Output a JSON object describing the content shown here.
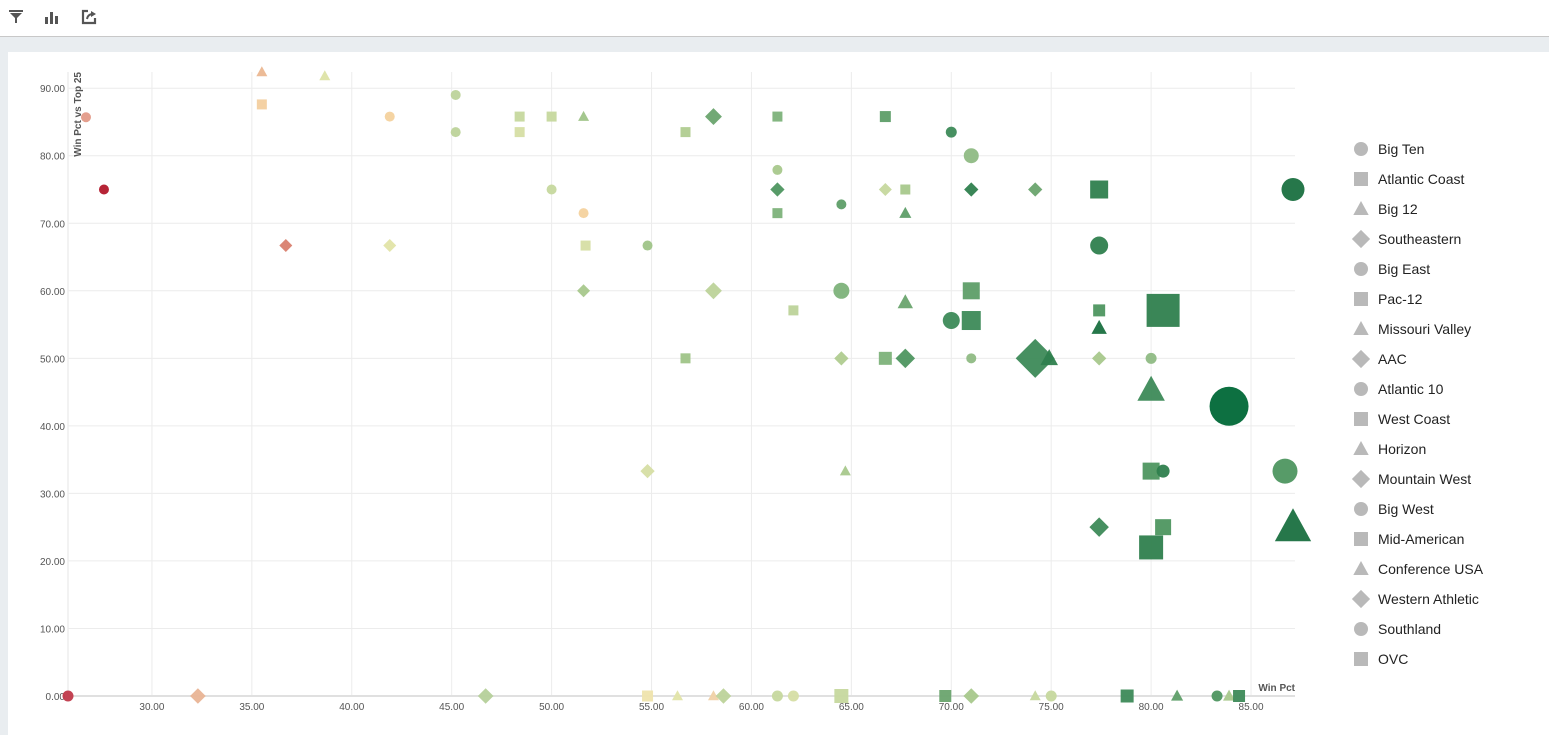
{
  "toolbar": {
    "icons": [
      "filter-icon",
      "bar-chart-icon",
      "export-icon"
    ]
  },
  "chart_data": {
    "type": "scatter",
    "xlabel": "Win Pct",
    "ylabel": "Win Pct vs Top 25",
    "xlim": [
      25.8,
      87.2
    ],
    "ylim": [
      0,
      92.4
    ],
    "xticks": [
      "30.00",
      "35.00",
      "40.00",
      "45.00",
      "50.00",
      "55.00",
      "60.00",
      "65.00",
      "70.00",
      "75.00",
      "80.00",
      "85.00"
    ],
    "yticks": [
      "0.00",
      "10.00",
      "20.00",
      "30.00",
      "40.00",
      "50.00",
      "60.00",
      "70.00",
      "80.00",
      "90.00"
    ],
    "grid": true,
    "legend_position": "right",
    "legend": [
      {
        "label": "Big Ten",
        "shape": "circle"
      },
      {
        "label": "Atlantic Coast",
        "shape": "square"
      },
      {
        "label": "Big 12",
        "shape": "triangle"
      },
      {
        "label": "Southeastern",
        "shape": "diamond"
      },
      {
        "label": "Big East",
        "shape": "circle"
      },
      {
        "label": "Pac-12",
        "shape": "square"
      },
      {
        "label": "Missouri Valley",
        "shape": "triangle"
      },
      {
        "label": "AAC",
        "shape": "diamond"
      },
      {
        "label": "Atlantic 10",
        "shape": "circle"
      },
      {
        "label": "West Coast",
        "shape": "square"
      },
      {
        "label": "Horizon",
        "shape": "triangle"
      },
      {
        "label": "Mountain West",
        "shape": "diamond"
      },
      {
        "label": "Big West",
        "shape": "circle"
      },
      {
        "label": "Mid-American",
        "shape": "square"
      },
      {
        "label": "Conference USA",
        "shape": "triangle"
      },
      {
        "label": "Western Athletic",
        "shape": "diamond"
      },
      {
        "label": "Southland",
        "shape": "circle"
      },
      {
        "label": "OVC",
        "shape": "square"
      }
    ],
    "legend_color": "#b5b5b5",
    "points": [
      {
        "x": 26.7,
        "y": 85.7,
        "shape": "circle",
        "size": 1,
        "color": "#e39a88"
      },
      {
        "x": 27.6,
        "y": 75,
        "shape": "circle",
        "size": 1,
        "color": "#b2182b"
      },
      {
        "x": 35.5,
        "y": 92.4,
        "shape": "triangle",
        "size": 1,
        "color": "#ebb791"
      },
      {
        "x": 35.5,
        "y": 87.6,
        "shape": "square",
        "size": 1,
        "color": "#f3cf9f"
      },
      {
        "x": 38.65,
        "y": 91.8,
        "shape": "triangle",
        "size": 1,
        "color": "#dde3a6"
      },
      {
        "x": 36.7,
        "y": 66.7,
        "shape": "diamond",
        "size": 1,
        "color": "#d9806e"
      },
      {
        "x": 41.9,
        "y": 85.8,
        "shape": "circle",
        "size": 1,
        "color": "#f4d29e"
      },
      {
        "x": 41.9,
        "y": 66.7,
        "shape": "diamond",
        "size": 1,
        "color": "#e2e4a8"
      },
      {
        "x": 45.2,
        "y": 89,
        "shape": "circle",
        "size": 1,
        "color": "#bdd39a"
      },
      {
        "x": 45.2,
        "y": 83.5,
        "shape": "circle",
        "size": 1,
        "color": "#bdd39a"
      },
      {
        "x": 48.4,
        "y": 85.8,
        "shape": "square",
        "size": 1,
        "color": "#c6d89e"
      },
      {
        "x": 48.4,
        "y": 83.5,
        "shape": "square",
        "size": 1,
        "color": "#d6dea4"
      },
      {
        "x": 50,
        "y": 85.8,
        "shape": "square",
        "size": 1,
        "color": "#c6d89e"
      },
      {
        "x": 51.6,
        "y": 85.8,
        "shape": "triangle",
        "size": 1,
        "color": "#9fc488"
      },
      {
        "x": 50,
        "y": 75,
        "shape": "circle",
        "size": 1,
        "color": "#c6d89e"
      },
      {
        "x": 51.6,
        "y": 71.5,
        "shape": "circle",
        "size": 1,
        "color": "#f4d29e"
      },
      {
        "x": 51.7,
        "y": 66.7,
        "shape": "square",
        "size": 1,
        "color": "#d6dea4"
      },
      {
        "x": 51.6,
        "y": 60,
        "shape": "diamond",
        "size": 1,
        "color": "#a8c88c"
      },
      {
        "x": 54.8,
        "y": 66.7,
        "shape": "circle",
        "size": 1,
        "color": "#9fc488"
      },
      {
        "x": 56.7,
        "y": 83.5,
        "shape": "square",
        "size": 1,
        "color": "#b0cc90"
      },
      {
        "x": 58.1,
        "y": 85.8,
        "shape": "diamond",
        "size": 1.3,
        "color": "#6aa46e"
      },
      {
        "x": 56.7,
        "y": 50,
        "shape": "square",
        "size": 1,
        "color": "#9fc488"
      },
      {
        "x": 58.1,
        "y": 60,
        "shape": "diamond",
        "size": 1.3,
        "color": "#bdd39a"
      },
      {
        "x": 54.8,
        "y": 33.3,
        "shape": "diamond",
        "size": 1.1,
        "color": "#d6dea4"
      },
      {
        "x": 61.3,
        "y": 85.8,
        "shape": "square",
        "size": 1,
        "color": "#7db27a"
      },
      {
        "x": 61.3,
        "y": 77.9,
        "shape": "circle",
        "size": 1,
        "color": "#a8c88c"
      },
      {
        "x": 61.3,
        "y": 75,
        "shape": "diamond",
        "size": 1.1,
        "color": "#4e9660"
      },
      {
        "x": 61.3,
        "y": 71.5,
        "shape": "square",
        "size": 1,
        "color": "#7db27a"
      },
      {
        "x": 64.5,
        "y": 72.8,
        "shape": "circle",
        "size": 1,
        "color": "#5e9e68"
      },
      {
        "x": 62.1,
        "y": 57.1,
        "shape": "square",
        "size": 1,
        "color": "#bdd39a"
      },
      {
        "x": 64.5,
        "y": 60,
        "shape": "circle",
        "size": 1.6,
        "color": "#7db27a"
      },
      {
        "x": 64.5,
        "y": 50,
        "shape": "diamond",
        "size": 1.1,
        "color": "#b0cc90"
      },
      {
        "x": 64.7,
        "y": 33.3,
        "shape": "triangle",
        "size": 1,
        "color": "#a8c88c"
      },
      {
        "x": 66.7,
        "y": 85.8,
        "shape": "square",
        "size": 1.1,
        "color": "#5e9e68"
      },
      {
        "x": 66.7,
        "y": 75,
        "shape": "diamond",
        "size": 1,
        "color": "#c6d89e"
      },
      {
        "x": 67.7,
        "y": 75,
        "shape": "square",
        "size": 1,
        "color": "#a8c88c"
      },
      {
        "x": 67.7,
        "y": 71.5,
        "shape": "triangle",
        "size": 1.1,
        "color": "#5e9e68"
      },
      {
        "x": 67.7,
        "y": 58.3,
        "shape": "triangle",
        "size": 1.4,
        "color": "#6aa46e"
      },
      {
        "x": 66.7,
        "y": 50,
        "shape": "square",
        "size": 1.3,
        "color": "#7db27a"
      },
      {
        "x": 67.7,
        "y": 50,
        "shape": "diamond",
        "size": 1.5,
        "color": "#4e9660"
      },
      {
        "x": 70,
        "y": 83.5,
        "shape": "circle",
        "size": 1.1,
        "color": "#3d8a58"
      },
      {
        "x": 71,
        "y": 80,
        "shape": "circle",
        "size": 1.5,
        "color": "#8fba84"
      },
      {
        "x": 71,
        "y": 75,
        "shape": "diamond",
        "size": 1.1,
        "color": "#2f7f4e"
      },
      {
        "x": 71,
        "y": 60,
        "shape": "square",
        "size": 1.7,
        "color": "#5e9e68"
      },
      {
        "x": 70,
        "y": 55.6,
        "shape": "circle",
        "size": 1.7,
        "color": "#3d8a58"
      },
      {
        "x": 71,
        "y": 55.6,
        "shape": "square",
        "size": 1.9,
        "color": "#3d8a58"
      },
      {
        "x": 71,
        "y": 50,
        "shape": "circle",
        "size": 1,
        "color": "#8fba84"
      },
      {
        "x": 74.2,
        "y": 75,
        "shape": "diamond",
        "size": 1.1,
        "color": "#6aa46e"
      },
      {
        "x": 74.2,
        "y": 50,
        "shape": "diamond",
        "size": 3,
        "color": "#3d8a58"
      },
      {
        "x": 74.9,
        "y": 50,
        "shape": "triangle",
        "size": 1.6,
        "color": "#2f7f4e"
      },
      {
        "x": 77.4,
        "y": 75,
        "shape": "square",
        "size": 1.8,
        "color": "#2f7f4e"
      },
      {
        "x": 77.4,
        "y": 66.7,
        "shape": "circle",
        "size": 1.8,
        "color": "#2f7f4e"
      },
      {
        "x": 77.4,
        "y": 57.1,
        "shape": "square",
        "size": 1.2,
        "color": "#4e9660"
      },
      {
        "x": 77.4,
        "y": 54.5,
        "shape": "triangle",
        "size": 1.4,
        "color": "#1a7040"
      },
      {
        "x": 77.4,
        "y": 50,
        "shape": "diamond",
        "size": 1.1,
        "color": "#a8c88c"
      },
      {
        "x": 77.4,
        "y": 25,
        "shape": "diamond",
        "size": 1.5,
        "color": "#3d8a58"
      },
      {
        "x": 80.6,
        "y": 57.1,
        "shape": "square",
        "size": 3.3,
        "color": "#2f7f4e"
      },
      {
        "x": 80,
        "y": 50,
        "shape": "circle",
        "size": 1.1,
        "color": "#8fba84"
      },
      {
        "x": 80,
        "y": 45.3,
        "shape": "triangle",
        "size": 2.5,
        "color": "#3d8a58"
      },
      {
        "x": 83.9,
        "y": 42.9,
        "shape": "circle",
        "size": 3.9,
        "color": "#006837"
      },
      {
        "x": 80,
        "y": 33.3,
        "shape": "square",
        "size": 1.7,
        "color": "#4e9660"
      },
      {
        "x": 80.6,
        "y": 33.3,
        "shape": "circle",
        "size": 1.3,
        "color": "#2f7f4e"
      },
      {
        "x": 80.6,
        "y": 25,
        "shape": "square",
        "size": 1.6,
        "color": "#4e9660"
      },
      {
        "x": 80,
        "y": 22,
        "shape": "square",
        "size": 2.4,
        "color": "#2f7f4e"
      },
      {
        "x": 87.1,
        "y": 75,
        "shape": "circle",
        "size": 2.3,
        "color": "#1a7040"
      },
      {
        "x": 86.7,
        "y": 33.3,
        "shape": "circle",
        "size": 2.5,
        "color": "#4e9660"
      },
      {
        "x": 87.1,
        "y": 25,
        "shape": "triangle",
        "size": 3.3,
        "color": "#1a7040"
      },
      {
        "x": 25.8,
        "y": 0,
        "shape": "circle",
        "size": 1.1,
        "color": "#c0394a"
      },
      {
        "x": 32.3,
        "y": 0,
        "shape": "diamond",
        "size": 1.2,
        "color": "#e9b495"
      },
      {
        "x": 46.7,
        "y": 0,
        "shape": "diamond",
        "size": 1.2,
        "color": "#b5d09a"
      },
      {
        "x": 54.8,
        "y": 0,
        "shape": "square",
        "size": 1.1,
        "color": "#efe4ad"
      },
      {
        "x": 56.3,
        "y": 0,
        "shape": "triangle",
        "size": 1,
        "color": "#e2e4a8"
      },
      {
        "x": 58.1,
        "y": 0,
        "shape": "triangle",
        "size": 1,
        "color": "#f0d1a6"
      },
      {
        "x": 58.6,
        "y": 0,
        "shape": "diamond",
        "size": 1.2,
        "color": "#bdd39a"
      },
      {
        "x": 61.3,
        "y": 0,
        "shape": "circle",
        "size": 1.1,
        "color": "#c6d89e"
      },
      {
        "x": 62.1,
        "y": 0,
        "shape": "circle",
        "size": 1.1,
        "color": "#d6dea4"
      },
      {
        "x": 64.5,
        "y": 0,
        "shape": "square",
        "size": 1.4,
        "color": "#c6d89e"
      },
      {
        "x": 69.7,
        "y": 0,
        "shape": "square",
        "size": 1.2,
        "color": "#6aa46e"
      },
      {
        "x": 71,
        "y": 0,
        "shape": "diamond",
        "size": 1.2,
        "color": "#a8c88c"
      },
      {
        "x": 74.2,
        "y": 0,
        "shape": "triangle",
        "size": 1,
        "color": "#c6d89e"
      },
      {
        "x": 75,
        "y": 0,
        "shape": "circle",
        "size": 1.1,
        "color": "#c6d89e"
      },
      {
        "x": 78.8,
        "y": 0,
        "shape": "square",
        "size": 1.3,
        "color": "#3d8a58"
      },
      {
        "x": 81.3,
        "y": 0,
        "shape": "triangle",
        "size": 1.1,
        "color": "#5e9e68"
      },
      {
        "x": 83.3,
        "y": 0,
        "shape": "circle",
        "size": 1.1,
        "color": "#4e9660"
      },
      {
        "x": 83.9,
        "y": 0,
        "shape": "triangle",
        "size": 1.1,
        "color": "#a8c88c"
      },
      {
        "x": 84.4,
        "y": 0,
        "shape": "square",
        "size": 1.2,
        "color": "#3d8a58"
      }
    ]
  }
}
